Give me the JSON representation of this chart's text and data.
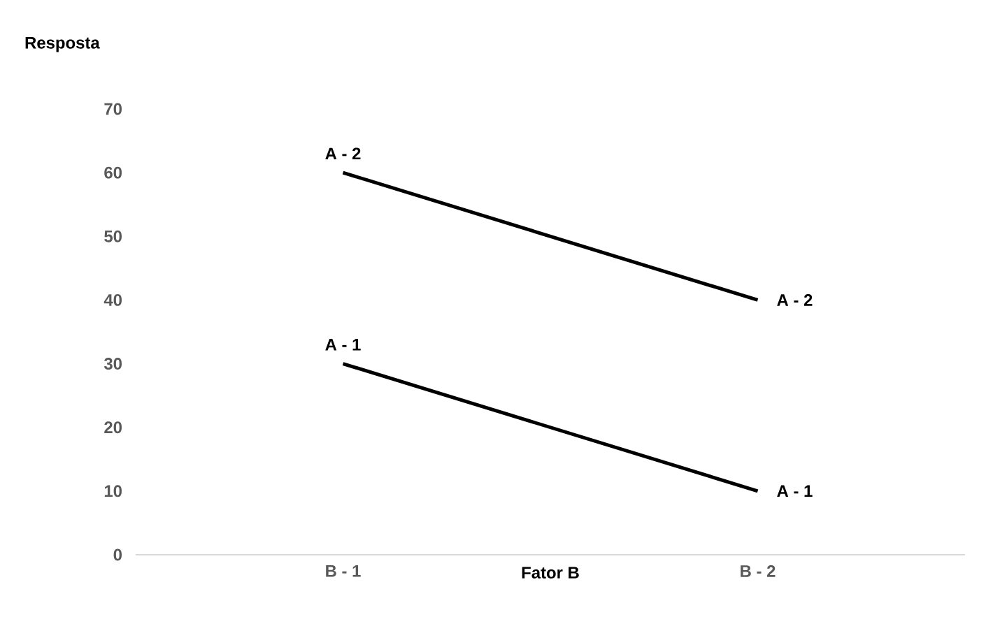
{
  "chart_data": {
    "type": "line",
    "ylabel": "Resposta",
    "xlabel": "Fator B",
    "categories": [
      "B - 1",
      "B - 2"
    ],
    "series": [
      {
        "color": "#000000",
        "values": [
          30,
          10
        ]
      },
      {
        "color": "#000000",
        "values": [
          60,
          40
        ]
      }
    ],
    "ylim": [
      0,
      70
    ],
    "yticks": [
      0,
      10,
      20,
      30,
      40,
      50,
      60,
      70
    ],
    "grid": false,
    "marker": "none",
    "line_style": "solid",
    "annotations": [
      {
        "text": "A - 2",
        "x": "B - 1",
        "y": 60
      },
      {
        "text": "A - 2",
        "x": "B - 2",
        "y": 40
      },
      {
        "text": "A - 1",
        "x": "B - 1",
        "y": 30
      },
      {
        "text": "A - 1",
        "x": "B - 2",
        "y": 10
      }
    ]
  }
}
